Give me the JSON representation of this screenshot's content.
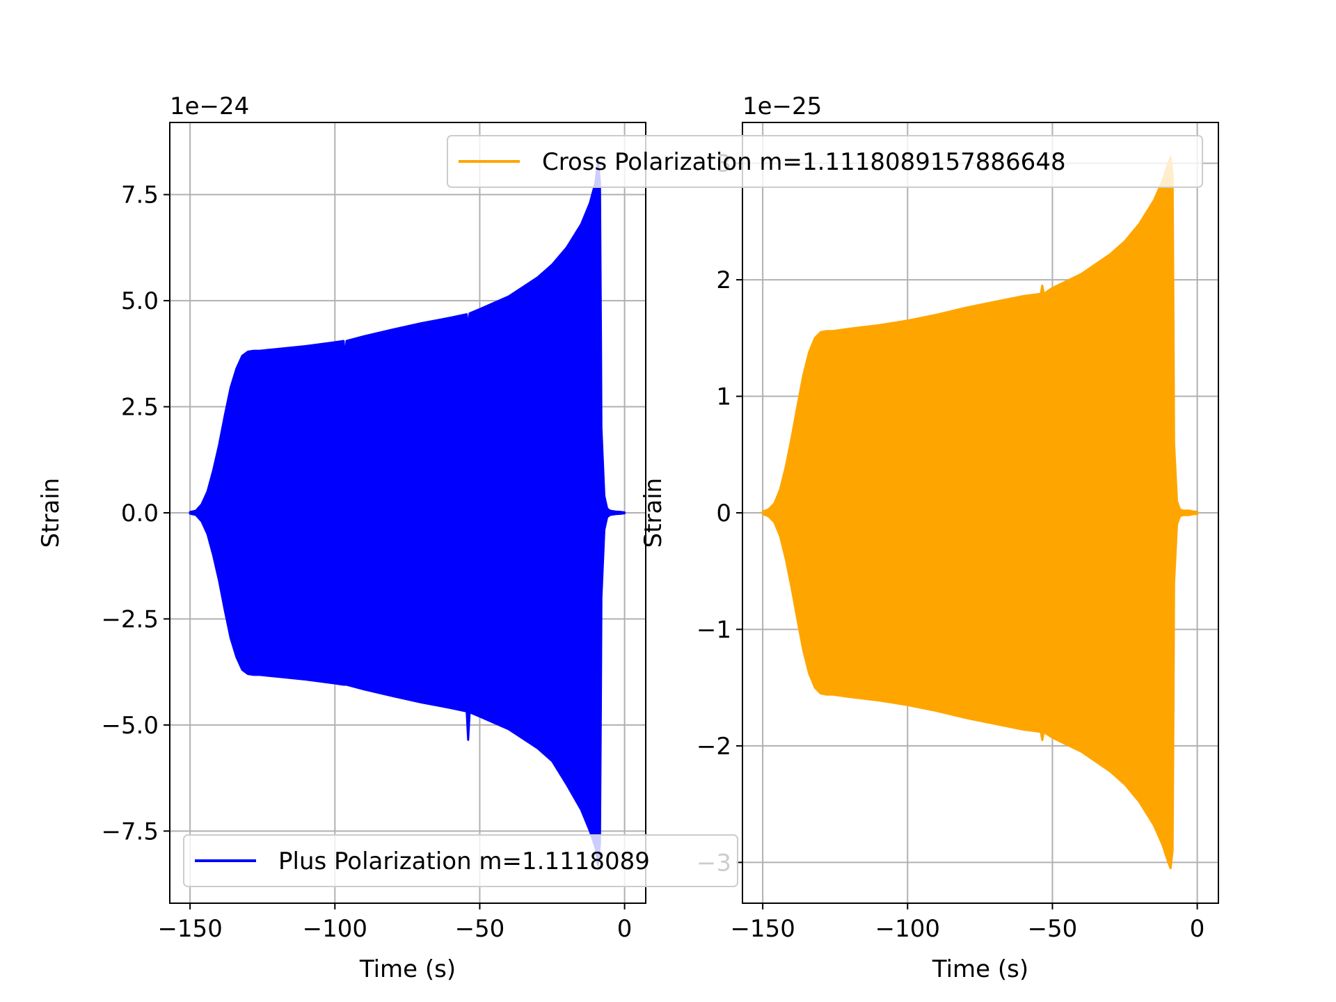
{
  "chart_data": [
    {
      "type": "line",
      "offset_label": "1e−24",
      "xlabel": "Time (s)",
      "ylabel": "Strain",
      "xlim": [
        -157,
        7.3
      ],
      "ylim": [
        -9.2,
        9.2
      ],
      "xticks": [
        -150,
        -100,
        -50,
        0
      ],
      "xtick_labels": [
        "−150",
        "−100",
        "−50",
        "0"
      ],
      "yticks": [
        -7.5,
        -5.0,
        -2.5,
        0.0,
        2.5,
        5.0,
        7.5
      ],
      "ytick_labels": [
        "−7.5",
        "−5.0",
        "−2.5",
        "0.0",
        "2.5",
        "5.0",
        "7.5"
      ],
      "grid": true,
      "legend_position": "lower-left",
      "series": [
        {
          "name": "Plus Polarization m=1.1118089",
          "color": "#0000ff",
          "envelope": {
            "x": [
              -150,
              -148,
              -146,
              -144,
              -142,
              -140,
              -138,
              -136,
              -134,
              -132,
              -130,
              -128,
              -126,
              -120,
              -110,
              -100,
              -97,
              -96.5,
              -96,
              -90,
              -80,
              -70,
              -60,
              -54.5,
              -54,
              -53.5,
              -50,
              -40,
              -30,
              -25,
              -20,
              -15,
              -12,
              -10,
              -9.2,
              -8.5,
              -8.2,
              -8,
              -7,
              -6,
              -5,
              -3,
              -1,
              0
            ],
            "upper": [
              0.02,
              0.05,
              0.2,
              0.5,
              1.0,
              1.6,
              2.3,
              2.95,
              3.4,
              3.7,
              3.8,
              3.82,
              3.82,
              3.86,
              3.93,
              4.02,
              4.05,
              3.65,
              4.05,
              4.16,
              4.32,
              4.47,
              4.6,
              4.68,
              4.35,
              4.7,
              4.8,
              5.1,
              5.55,
              5.85,
              6.25,
              6.8,
              7.3,
              7.8,
              8.3,
              7.8,
              4.5,
              2.0,
              0.4,
              0.1,
              0.05,
              0.03,
              0.02,
              0.01
            ],
            "lower": [
              -0.02,
              -0.05,
              -0.2,
              -0.5,
              -1.0,
              -1.6,
              -2.3,
              -2.95,
              -3.4,
              -3.7,
              -3.8,
              -3.82,
              -3.82,
              -3.86,
              -3.93,
              -4.02,
              -4.05,
              -4.05,
              -4.05,
              -4.16,
              -4.32,
              -4.47,
              -4.6,
              -4.68,
              -5.35,
              -4.7,
              -4.8,
              -5.1,
              -5.55,
              -5.85,
              -6.4,
              -7.0,
              -7.5,
              -7.9,
              -8.3,
              -7.8,
              -4.5,
              -2.0,
              -0.4,
              -0.1,
              -0.05,
              -0.03,
              -0.02,
              -0.01
            ]
          }
        }
      ]
    },
    {
      "type": "line",
      "offset_label": "1e−25",
      "xlabel": "Time (s)",
      "ylabel": "Strain",
      "xlim": [
        -157,
        7.3
      ],
      "ylim": [
        -3.35,
        3.35
      ],
      "xticks": [
        -150,
        -100,
        -50,
        0
      ],
      "xtick_labels": [
        "−150",
        "−100",
        "−50",
        "0"
      ],
      "yticks": [
        -3,
        -2,
        -1,
        0,
        1,
        2,
        3
      ],
      "ytick_labels": [
        "−3",
        "−2",
        "−1",
        "0",
        "1",
        "2",
        "3"
      ],
      "grid": true,
      "legend_position": "upper-right",
      "series": [
        {
          "name": "Cross Polarization m=1.1118089157886648",
          "color": "#ffa500",
          "envelope": {
            "x": [
              -150,
              -148,
              -146,
              -144,
              -142,
              -140,
              -138,
              -136,
              -134,
              -132,
              -130,
              -128,
              -126,
              -120,
              -110,
              -100,
              -90,
              -80,
              -70,
              -60,
              -54,
              -53.5,
              -53,
              -50,
              -40,
              -30,
              -25,
              -20,
              -15,
              -12,
              -10,
              -9.2,
              -8.5,
              -8.2,
              -8,
              -7,
              -6,
              -5,
              -3,
              -1,
              0
            ],
            "upper": [
              0.01,
              0.03,
              0.08,
              0.2,
              0.4,
              0.65,
              0.92,
              1.18,
              1.38,
              1.5,
              1.55,
              1.56,
              1.56,
              1.58,
              1.61,
              1.65,
              1.7,
              1.76,
              1.81,
              1.86,
              1.88,
              1.95,
              1.88,
              1.93,
              2.05,
              2.22,
              2.33,
              2.48,
              2.68,
              2.85,
              3.0,
              3.05,
              2.9,
              1.6,
              0.6,
              0.1,
              0.03,
              0.02,
              0.02,
              0.01,
              0.01
            ],
            "lower": [
              -0.01,
              -0.03,
              -0.08,
              -0.2,
              -0.4,
              -0.65,
              -0.92,
              -1.18,
              -1.38,
              -1.5,
              -1.55,
              -1.56,
              -1.56,
              -1.58,
              -1.61,
              -1.65,
              -1.7,
              -1.76,
              -1.81,
              -1.86,
              -1.88,
              -1.95,
              -1.88,
              -1.93,
              -2.05,
              -2.22,
              -2.33,
              -2.48,
              -2.68,
              -2.85,
              -3.0,
              -3.05,
              -2.9,
              -1.6,
              -0.6,
              -0.1,
              -0.03,
              -0.02,
              -0.02,
              -0.01,
              -0.01
            ]
          }
        }
      ]
    }
  ]
}
